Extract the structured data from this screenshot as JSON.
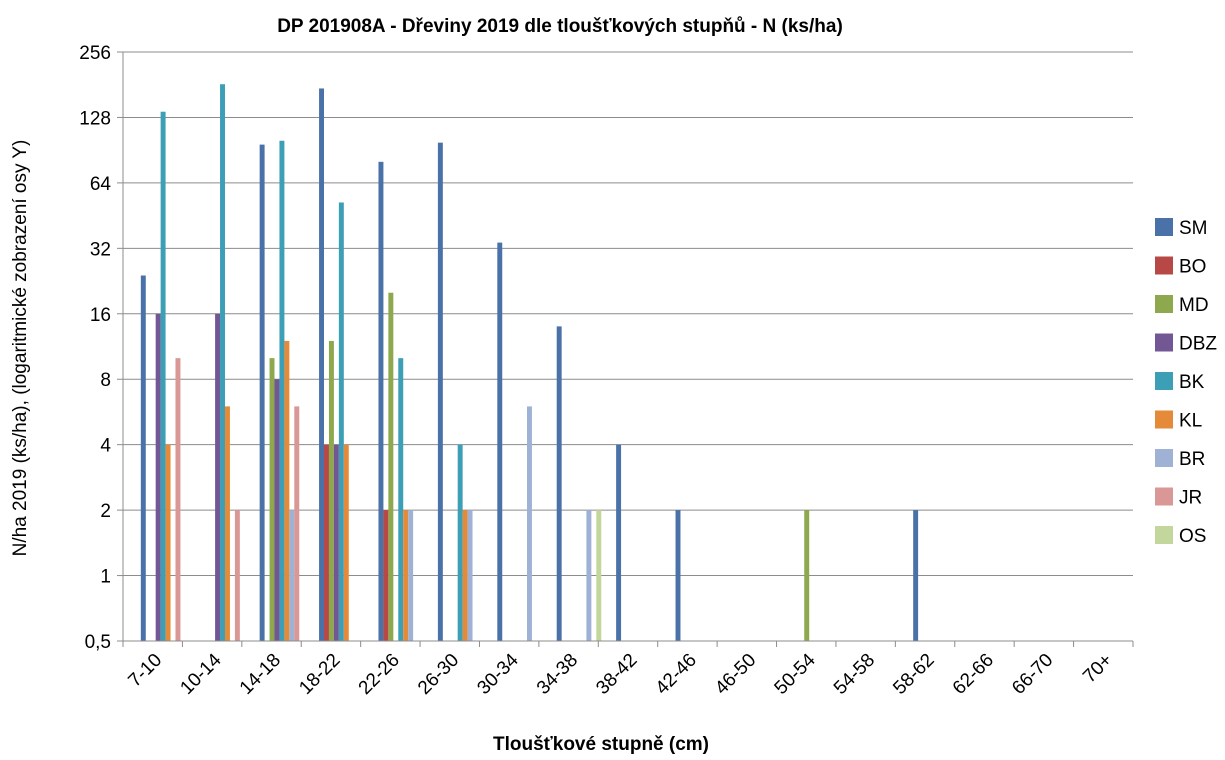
{
  "chart_data": {
    "type": "bar",
    "title": "DP 201908A - Dřeviny 2019 dle tloušťkových stupňů - N (ks/ha)",
    "xlabel": "Tloušťkové stupně (cm)",
    "ylabel": "N/ha 2019 (ks/ha), (logaritmické zobrazení osy Y)",
    "y_scale": "log2",
    "ylim": [
      0.5,
      256
    ],
    "yticks": [
      0.5,
      1,
      2,
      4,
      8,
      16,
      32,
      64,
      128,
      256
    ],
    "ytick_labels": [
      "0,5",
      "1",
      "2",
      "4",
      "8",
      "16",
      "32",
      "64",
      "128",
      "256"
    ],
    "grid": "horizontal",
    "legend_position": "right",
    "categories": [
      "7-10",
      "10-14",
      "14-18",
      "18-22",
      "22-26",
      "26-30",
      "30-34",
      "34-38",
      "38-42",
      "42-46",
      "46-50",
      "50-54",
      "54-58",
      "58-62",
      "62-66",
      "66-70",
      "70+"
    ],
    "series": [
      {
        "name": "SM",
        "color": "#4a72a8",
        "values": [
          24,
          null,
          96,
          174,
          80,
          98,
          34,
          14,
          4,
          2,
          null,
          null,
          null,
          2,
          null,
          null,
          null
        ]
      },
      {
        "name": "BO",
        "color": "#b84845",
        "values": [
          null,
          null,
          null,
          4,
          2,
          null,
          null,
          null,
          null,
          null,
          null,
          null,
          null,
          null,
          null,
          null,
          null
        ]
      },
      {
        "name": "MD",
        "color": "#8ea84e",
        "values": [
          null,
          null,
          10,
          12,
          20,
          null,
          null,
          null,
          null,
          null,
          null,
          2,
          null,
          null,
          null,
          null,
          null
        ]
      },
      {
        "name": "DBZ",
        "color": "#735794",
        "values": [
          16,
          16,
          8,
          4,
          null,
          null,
          null,
          null,
          null,
          null,
          null,
          null,
          null,
          null,
          null,
          null,
          null
        ]
      },
      {
        "name": "BK",
        "color": "#3d9fb5",
        "values": [
          136,
          182,
          100,
          52,
          10,
          4,
          null,
          null,
          null,
          null,
          null,
          null,
          null,
          null,
          null,
          null,
          null
        ]
      },
      {
        "name": "KL",
        "color": "#e58a38",
        "values": [
          4,
          6,
          12,
          4,
          2,
          2,
          null,
          null,
          null,
          null,
          null,
          null,
          null,
          null,
          null,
          null,
          null
        ]
      },
      {
        "name": "BR",
        "color": "#9fb2d6",
        "values": [
          null,
          null,
          2,
          null,
          2,
          2,
          6,
          2,
          null,
          null,
          null,
          null,
          null,
          null,
          null,
          null,
          null
        ]
      },
      {
        "name": "JR",
        "color": "#d99795",
        "values": [
          10,
          2,
          6,
          null,
          null,
          null,
          null,
          null,
          null,
          null,
          null,
          null,
          null,
          null,
          null,
          null,
          null
        ]
      },
      {
        "name": "OS",
        "color": "#c3d69c",
        "values": [
          null,
          null,
          null,
          null,
          null,
          null,
          null,
          2,
          null,
          null,
          null,
          null,
          null,
          null,
          null,
          null,
          null
        ]
      }
    ]
  }
}
